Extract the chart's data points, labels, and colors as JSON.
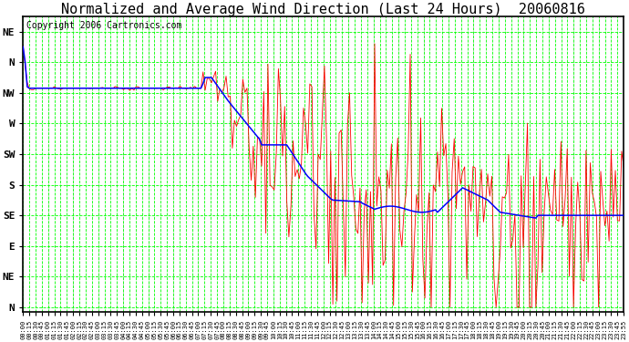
{
  "title": "Normalized and Average Wind Direction (Last 24 Hours)  20060816",
  "copyright": "Copyright 2006 Cartronics.com",
  "bg_color": "#ffffff",
  "grid_color": "#00ff00",
  "red_color": "#ff0000",
  "blue_color": "#0000ff",
  "ytick_labels": [
    "NE",
    "N",
    "NW",
    "W",
    "SW",
    "S",
    "SE",
    "E",
    "NE",
    "N"
  ],
  "ytick_values": [
    9,
    8,
    7,
    6,
    5,
    4,
    3,
    2,
    1,
    0
  ],
  "ylim": [
    -0.15,
    9.5
  ],
  "title_fontsize": 11,
  "copyright_fontsize": 7,
  "seed": 1234
}
